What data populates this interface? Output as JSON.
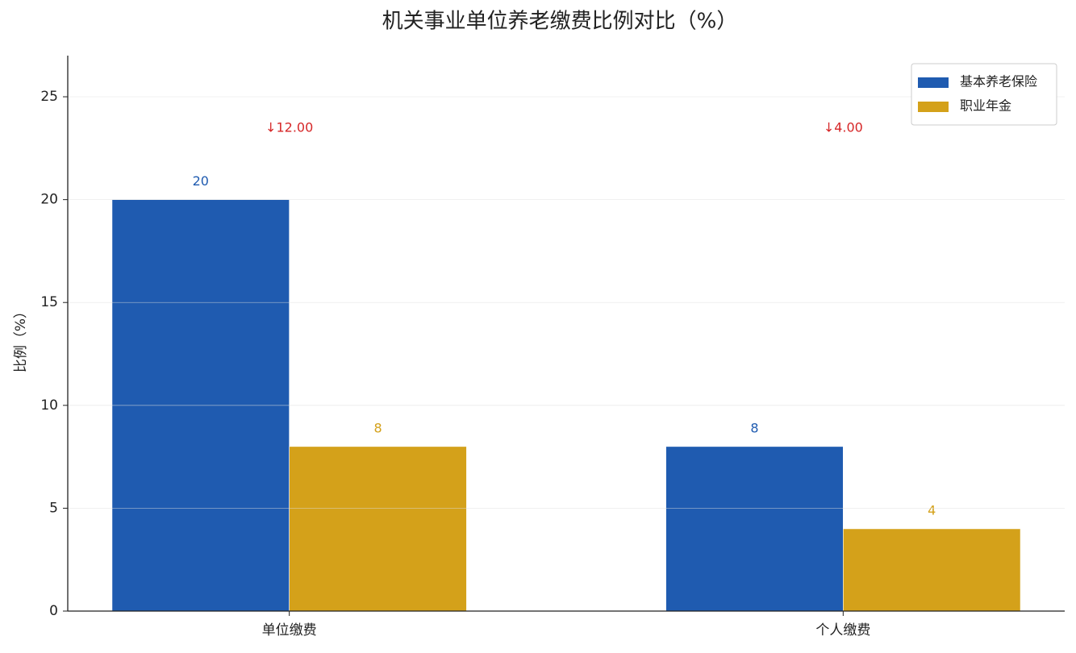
{
  "chart_data": {
    "type": "bar",
    "title": "机关事业单位养老缴费比例对比（%）",
    "y_label": "比例（%）",
    "categories": [
      "单位缴费",
      "个人缴费"
    ],
    "series": [
      {
        "name": "基本养老保险",
        "color": "#1f5bb0",
        "values": [
          20,
          8
        ]
      },
      {
        "name": "职业年金",
        "color": "#d4a11a",
        "values": [
          8,
          4
        ]
      }
    ],
    "annotations": [
      "↓12.00",
      "↓4.00"
    ],
    "annotation_color": "#d62728",
    "ylim": [
      0,
      27
    ],
    "yticks": [
      0,
      5,
      10,
      15,
      20,
      25
    ],
    "grid": true,
    "legend": "upper right"
  }
}
